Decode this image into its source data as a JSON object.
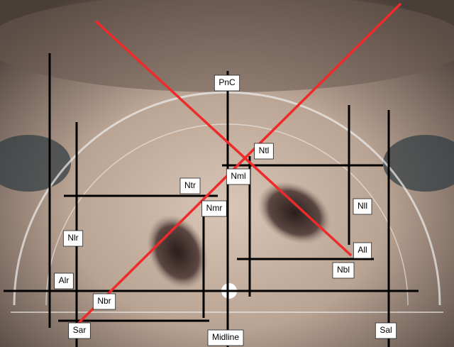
{
  "labels": {
    "pnc": "PnC",
    "ntl": "Ntl",
    "nml": "Nml",
    "ntr": "Ntr",
    "nmr": "Nmr",
    "nll": "Nll",
    "nlr": "Nlr",
    "all": "All",
    "nbl": "Nbl",
    "alr": "Alr",
    "nbr": "Nbr",
    "sar": "Sar",
    "midline": "Midline",
    "sal": "Sal"
  }
}
